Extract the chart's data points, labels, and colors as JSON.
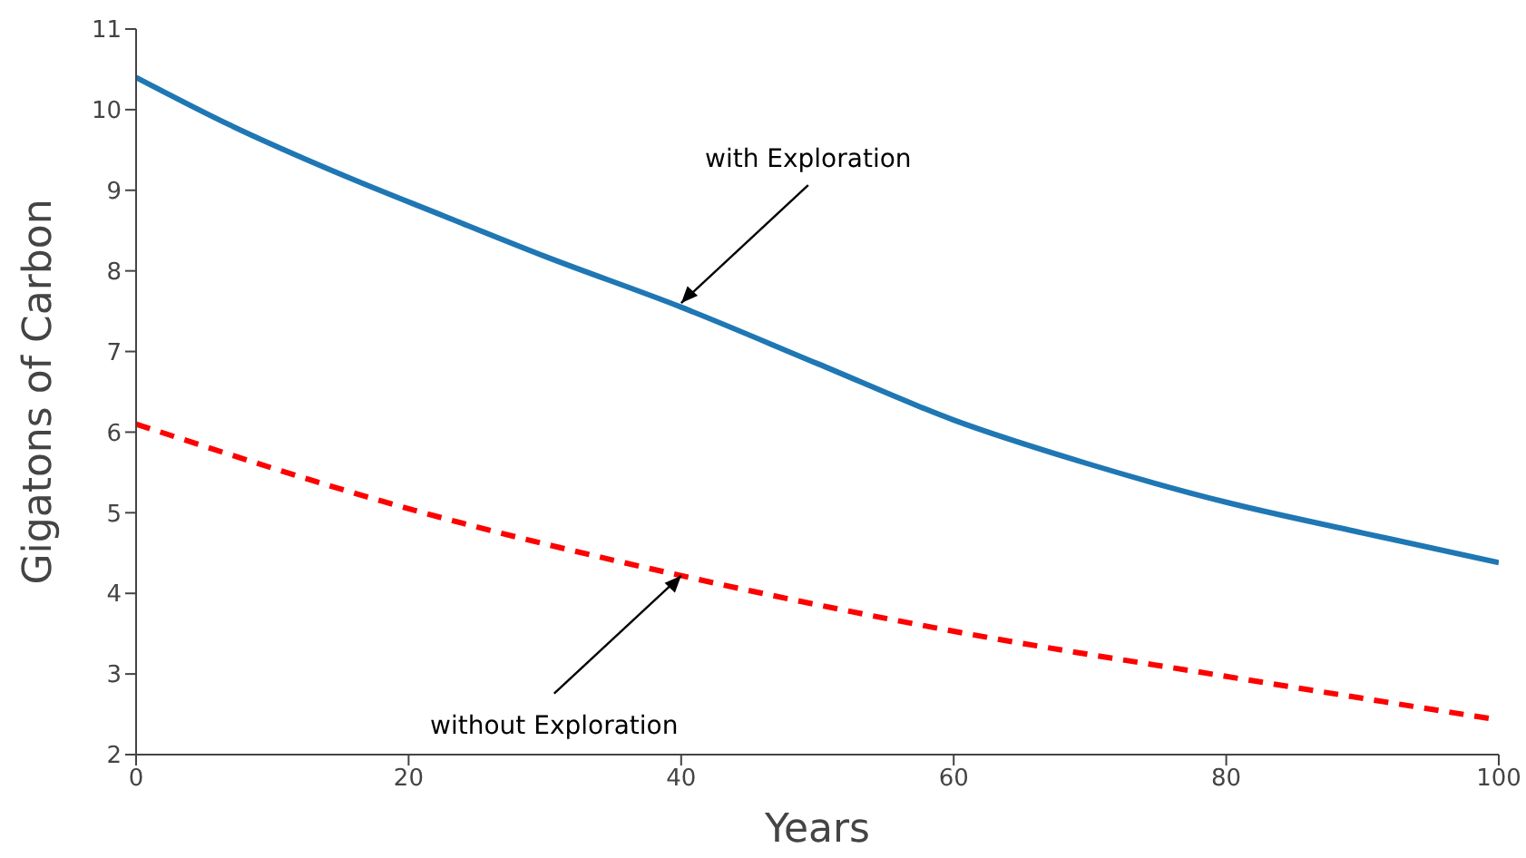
{
  "chart_data": {
    "type": "line",
    "xlabel": "Years",
    "ylabel": "Gigatons of Carbon",
    "xlim": [
      0,
      100
    ],
    "ylim": [
      2,
      11
    ],
    "xticks": [
      0,
      20,
      40,
      60,
      80,
      100
    ],
    "yticks": [
      2,
      3,
      4,
      5,
      6,
      7,
      8,
      9,
      10,
      11
    ],
    "grid": false,
    "legend": false,
    "marker": "none",
    "series": [
      {
        "color": "#1f77b4",
        "line_style": "solid",
        "x": [
          0,
          7,
          15,
          22.6,
          30,
          40,
          50,
          60,
          70,
          80,
          90,
          100
        ],
        "values": [
          10.4,
          9.8,
          9.2,
          8.68,
          8.18,
          7.55,
          6.85,
          6.15,
          5.6,
          5.13,
          4.75,
          4.38
        ]
      },
      {
        "color": "#ff0000",
        "line_style": "dashed",
        "x": [
          0,
          20,
          40,
          60,
          80,
          100
        ],
        "values": [
          6.1,
          5.05,
          4.22,
          3.53,
          2.97,
          2.43
        ]
      }
    ],
    "annotations": [
      {
        "text": "with Exploration",
        "x": 40,
        "y": 7.6
      },
      {
        "text": "without Exploration",
        "x": 40,
        "y": 4.22
      }
    ]
  }
}
